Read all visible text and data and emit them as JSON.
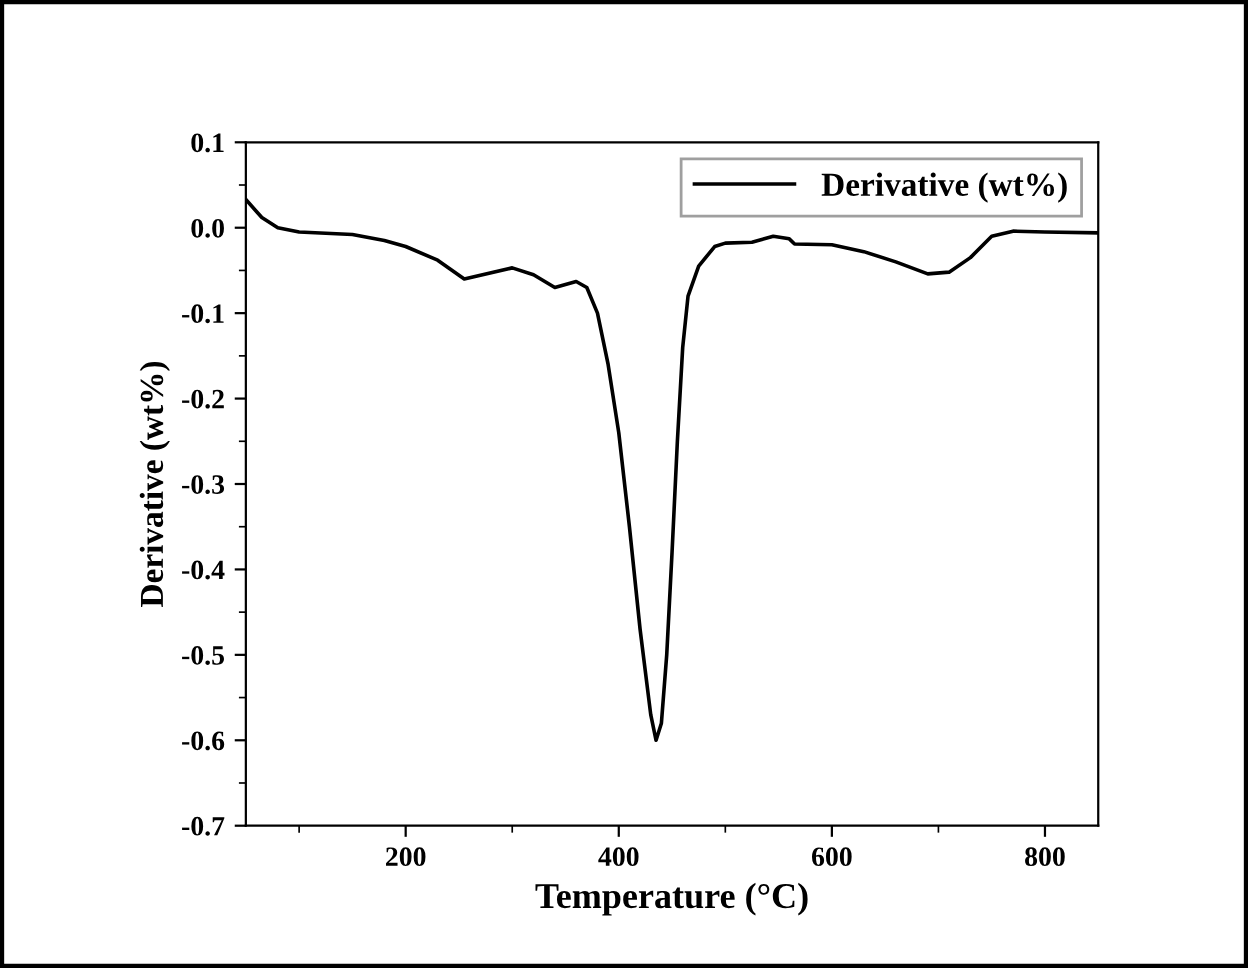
{
  "chart_data": {
    "type": "line",
    "xlabel": "Temperature (°C)",
    "ylabel": "Derivative (wt%)",
    "xlim": [
      50,
      850
    ],
    "xticks": [
      200,
      400,
      600,
      800
    ],
    "ylim": [
      -0.7,
      0.1
    ],
    "yticks": [
      -0.7,
      -0.6,
      -0.5,
      -0.4,
      -0.3,
      -0.2,
      -0.1,
      {
        "value": 0.0,
        "label": "0.0"
      },
      0.1
    ],
    "grid": false,
    "legend": "top right",
    "marker": "none",
    "line_style": "solid",
    "series": [
      {
        "name": "Derivative (wt%)",
        "color": "#000000",
        "x": [
          50,
          65,
          80,
          100,
          150,
          180,
          200,
          230,
          255,
          300,
          320,
          340,
          360,
          370,
          380,
          390,
          400,
          410,
          420,
          430,
          435,
          440,
          445,
          450,
          455,
          460,
          465,
          475,
          490,
          500,
          525,
          545,
          560,
          565,
          600,
          630,
          660,
          690,
          710,
          730,
          750,
          770,
          800,
          850
        ],
        "values": [
          0.033,
          0.012,
          0.0,
          -0.005,
          -0.008,
          -0.015,
          -0.022,
          -0.038,
          -0.06,
          -0.047,
          -0.055,
          -0.07,
          -0.063,
          -0.07,
          -0.1,
          -0.16,
          -0.24,
          -0.35,
          -0.47,
          -0.57,
          -0.6,
          -0.58,
          -0.5,
          -0.38,
          -0.25,
          -0.14,
          -0.08,
          -0.045,
          -0.022,
          -0.018,
          -0.017,
          -0.01,
          -0.013,
          -0.019,
          -0.02,
          -0.028,
          -0.04,
          -0.054,
          -0.052,
          -0.035,
          -0.01,
          -0.004,
          -0.005,
          -0.006
        ]
      }
    ]
  }
}
